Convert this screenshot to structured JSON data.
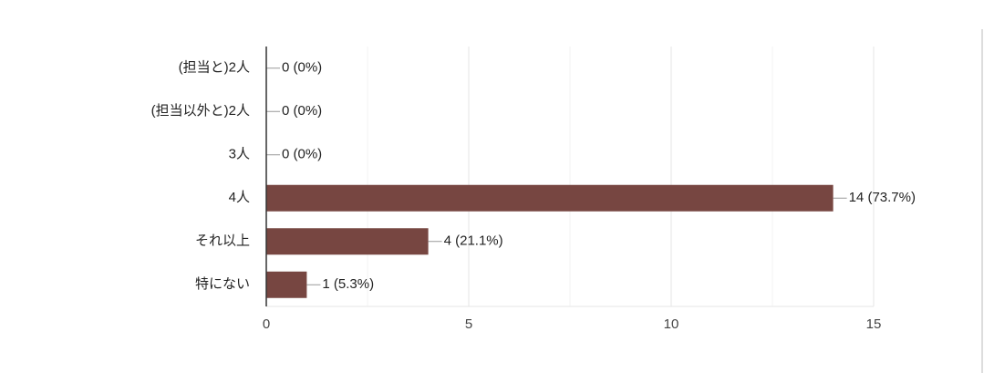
{
  "chart_data": {
    "type": "barh",
    "categories": [
      "(担当と)2人",
      "(担当以外と)2人",
      "3人",
      "4人",
      "それ以上",
      "特にない"
    ],
    "values": [
      0,
      0,
      0,
      14,
      4,
      1
    ],
    "value_labels": [
      "0 (0%)",
      "0 (0%)",
      "0 (0%)",
      "14 (73.7%)",
      "4 (21.1%)",
      "1 (5.3%)"
    ],
    "color": "#774641",
    "xlim": [
      0,
      15
    ],
    "xticks": [
      0,
      5,
      10,
      15
    ],
    "minor_xticks": [
      2.5,
      7.5,
      12.5
    ],
    "grid": true
  }
}
